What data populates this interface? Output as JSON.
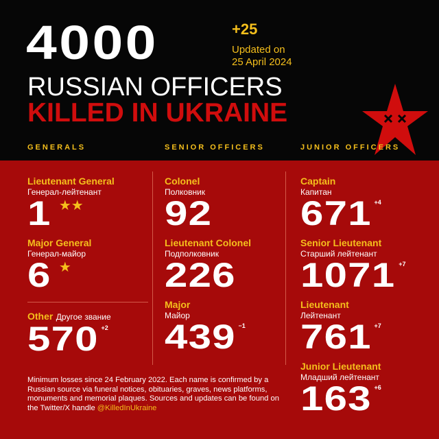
{
  "header": {
    "total": "4000",
    "delta": "+25",
    "updated_line1": "Updated on",
    "updated_line2": "25 April 2024",
    "title_line1": "RUSSIAN OFFICERS",
    "title_line2": "KILLED IN UKRAINE",
    "logo": "red-star-with-x-eyes"
  },
  "sections": {
    "generals": "GENERALS",
    "senior": "SENIOR OFFICERS",
    "junior": "JUNIOR OFFICERS"
  },
  "generals": [
    {
      "rank": "Lieutenant General",
      "ru": "Генерал-лейтенант",
      "count": "1",
      "stars": "★★"
    },
    {
      "rank": "Major General",
      "ru": "Генерал-майор",
      "count": "6",
      "stars": "★"
    },
    {
      "rank": "Other",
      "ru": "Другое звание",
      "count": "570",
      "delta": "+2"
    }
  ],
  "senior": [
    {
      "rank": "Colonel",
      "ru": "Полковник",
      "count": "92"
    },
    {
      "rank": "Lieutenant Colonel",
      "ru": "Подполковник",
      "count": "226"
    },
    {
      "rank": "Major",
      "ru": "Майор",
      "count": "439",
      "delta": "−1"
    }
  ],
  "junior": [
    {
      "rank": "Captain",
      "ru": "Капитан",
      "count": "671",
      "delta": "+4"
    },
    {
      "rank": "Senior Lieutenant",
      "ru": "Старший лейтенант",
      "count": "1071",
      "delta": "+7"
    },
    {
      "rank": "Lieutenant",
      "ru": "Лейтенант",
      "count": "761",
      "delta": "+7"
    },
    {
      "rank": "Junior Lieutenant",
      "ru": "Младший лейтенант",
      "count": "163",
      "delta": "+6"
    }
  ],
  "footnote": {
    "text": "Minimum losses since 24 February 2022. Each name is confirmed by a Russian source via funeral notices, obituaries, graves, news platforms, monuments and memorial plaques. Sources and updates can be found on the Twitter/X handle ",
    "handle": "@KilledInUkraine"
  },
  "colors": {
    "background_top": "#060606",
    "background_bottom": "#a60a0a",
    "accent": "#f5bf1c",
    "title_red": "#d00d0d"
  }
}
